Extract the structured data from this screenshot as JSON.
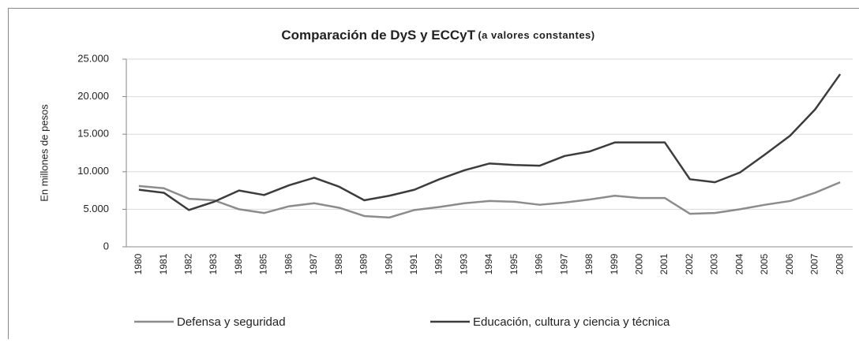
{
  "chart_data": {
    "type": "line",
    "title": "Comparación de DyS y ECCyT",
    "subtitle": "(a valores constantes)",
    "y_label": "En millones de pesos",
    "categories": [
      "1980",
      "1981",
      "1982",
      "1983",
      "1984",
      "1985",
      "1986",
      "1987",
      "1988",
      "1989",
      "1990",
      "1991",
      "1992",
      "1993",
      "1994",
      "1995",
      "1996",
      "1997",
      "1998",
      "1999",
      "2000",
      "2001",
      "2002",
      "2003",
      "2004",
      "2005",
      "2006",
      "2007",
      "2008"
    ],
    "series": [
      {
        "name": "Defensa y seguridad",
        "color": "#8c8c8c",
        "values": [
          8100,
          7800,
          6400,
          6200,
          5000,
          4500,
          5400,
          5800,
          5200,
          4100,
          3900,
          4900,
          5300,
          5800,
          6100,
          6000,
          5600,
          5900,
          6300,
          6800,
          6500,
          6500,
          4400,
          4500,
          5000,
          5600,
          6100,
          7200,
          8600
        ]
      },
      {
        "name": "Educación, cultura y ciencia y técnica",
        "color": "#3c3c3c",
        "values": [
          7600,
          7200,
          4900,
          6000,
          7500,
          6900,
          8200,
          9200,
          8000,
          6200,
          6800,
          7600,
          9000,
          10200,
          11100,
          10900,
          10800,
          12100,
          12700,
          13900,
          13900,
          13900,
          9000,
          8600,
          9900,
          12300,
          14800,
          18300,
          23000
        ]
      }
    ],
    "ylim": [
      0,
      25000
    ],
    "yticks": [
      0,
      {
        "value": 5000,
        "label": "5.000"
      },
      {
        "value": 10000,
        "label": "10.000"
      },
      {
        "value": 15000,
        "label": "15.000"
      },
      {
        "value": 20000,
        "label": "20.000"
      },
      {
        "value": 25000,
        "label": "25.000"
      }
    ],
    "grid": true
  }
}
